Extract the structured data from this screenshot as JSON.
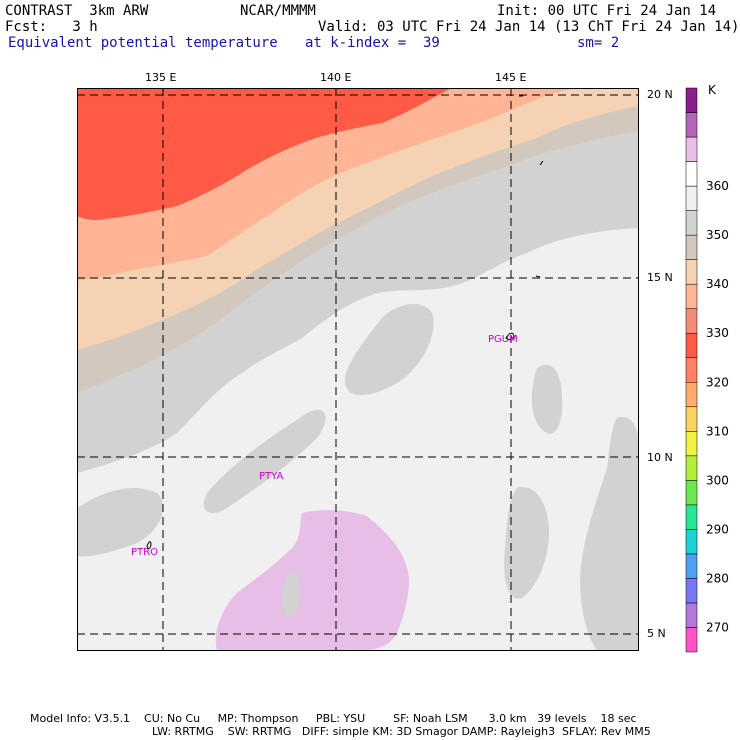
{
  "header": {
    "model": "CONTRAST  3km ARW",
    "center": "NCAR/MMMM",
    "init": "Init: 00 UTC Fri 24 Jan 14",
    "fcst": "Fcst:   3 h",
    "valid": "Valid: 03 UTC Fri 24 Jan 14 (13 ChT Fri 24 Jan 14)",
    "field": "Equivalent potential temperature",
    "level": "at k-index =  39",
    "smooth": "sm= 2"
  },
  "map": {
    "lon_labels": [
      "135 E",
      "140 E",
      "145 E"
    ],
    "lat_labels": [
      "20 N",
      "15 N",
      "10 N",
      "5 N"
    ],
    "stations": [
      "PGUM",
      "PTYA",
      "PTRO"
    ]
  },
  "colorbar": {
    "unit": "K",
    "ticks": [
      "360",
      "350",
      "340",
      "330",
      "320",
      "310",
      "300",
      "290",
      "280",
      "270"
    ],
    "colors": [
      "#ff55c8",
      "#b478dc",
      "#7878f0",
      "#50a0f0",
      "#1ed2d2",
      "#28e696",
      "#6ee650",
      "#b4ee3c",
      "#f0f046",
      "#fad264",
      "#ffaa6e",
      "#ff8264",
      "#ff5a46",
      "#f08c78",
      "#ffb496",
      "#f5d2b4",
      "#d2c8be",
      "#d2d2d2",
      "#f0f0f0",
      "#ffffff",
      "#e6bee6",
      "#b464b4",
      "#8c1e8c"
    ]
  },
  "footer": {
    "line1": "Model Info: V3.5.1    CU: No Cu     MP: Thompson     PBL: YSU        SF: Noah LSM      3.0 km   39 levels    18 sec",
    "line2": "LW: RRTMG    SW: RRTMG   DIFF: simple KM: 3D Smagor DAMP: Rayleigh3  SFLAY: Rev MM5"
  }
}
